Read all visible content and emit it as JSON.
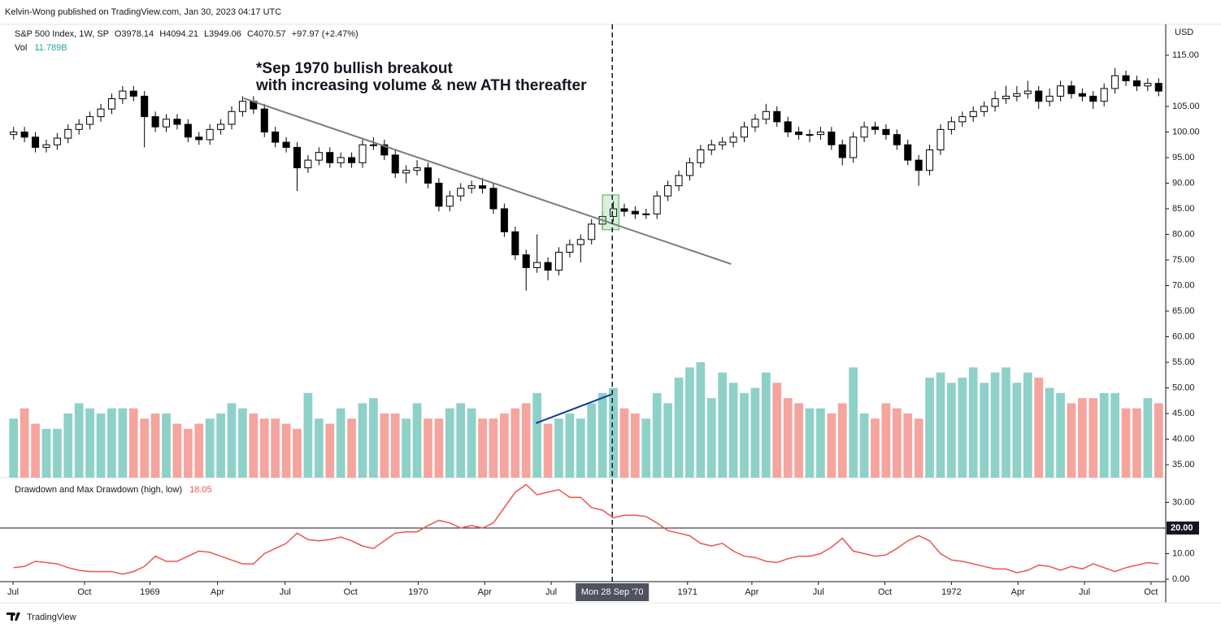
{
  "header": {
    "byline": "Kelvin-Wong published on TradingView.com, Jan 30, 2023 04:17 UTC"
  },
  "footer": {
    "brand": "TradingView"
  },
  "chart_data": [
    {
      "type": "candlestick",
      "title": "S&P 500 Index, 1W, SP",
      "legend_values": [
        "O3978.14",
        "H4094.21",
        "L3949.06",
        "C4070.57",
        "+97.97 (+2.47%)"
      ],
      "currency": "USD",
      "up_color": "#ffffff",
      "down_color": "#000000",
      "wick_color": "#000000",
      "open": [
        99.5,
        100.0,
        99.0,
        97.0,
        97.5,
        98.8,
        100.5,
        101.5,
        103.0,
        104.5,
        106.5,
        108.0,
        107.0,
        103.0,
        101.0,
        102.5,
        101.5,
        99.0,
        98.5,
        100.5,
        101.5,
        104.0,
        106.0,
        104.5,
        100.0,
        98.0,
        97.0,
        93.0,
        94.5,
        96.0,
        94.0,
        95.0,
        94.0,
        97.5,
        97.5,
        95.5,
        92.0,
        92.5,
        93.0,
        90.0,
        85.5,
        87.5,
        89.0,
        89.5,
        89.0,
        85.0,
        80.5,
        76.0,
        73.5,
        74.5,
        73.0,
        76.5,
        78.0,
        79.0,
        82.0,
        83.5,
        85.0,
        84.5,
        84.0,
        84.0,
        87.5,
        89.5,
        91.5,
        94.0,
        96.5,
        97.5,
        98.0,
        99.0,
        101.0,
        102.5,
        104.0,
        102.0,
        100.0,
        99.5,
        99.5,
        100.0,
        97.5,
        95.0,
        99.0,
        101.0,
        100.5,
        99.5,
        97.5,
        94.5,
        92.5,
        96.5,
        100.5,
        102.0,
        103.0,
        104.0,
        105.0,
        106.5,
        107.0,
        107.5,
        108.0,
        106.0,
        107.0,
        109.0,
        107.5,
        107.0,
        106.0,
        108.5,
        111.0,
        110.0,
        109.0,
        109.5
      ],
      "high": [
        101.0,
        101.0,
        100.0,
        98.5,
        99.8,
        101.5,
        102.5,
        104.0,
        105.5,
        107.5,
        109.0,
        109.0,
        108.0,
        104.0,
        103.5,
        103.5,
        102.5,
        100.0,
        101.5,
        102.5,
        105.0,
        107.0,
        107.0,
        105.5,
        101.0,
        99.0,
        98.0,
        95.5,
        97.0,
        97.0,
        96.0,
        96.0,
        98.5,
        99.0,
        98.5,
        96.5,
        93.5,
        94.5,
        94.0,
        91.0,
        88.5,
        90.0,
        90.5,
        91.0,
        90.0,
        86.0,
        81.5,
        77.0,
        80.0,
        75.5,
        77.5,
        79.0,
        80.0,
        83.0,
        84.5,
        86.5,
        86.0,
        85.5,
        85.0,
        88.5,
        90.5,
        92.5,
        95.0,
        97.5,
        98.5,
        99.0,
        100.0,
        102.0,
        103.5,
        105.5,
        105.0,
        103.0,
        101.0,
        100.5,
        101.0,
        101.0,
        98.5,
        100.0,
        102.0,
        102.0,
        101.5,
        100.5,
        98.5,
        95.5,
        97.5,
        101.5,
        103.0,
        104.0,
        105.0,
        106.0,
        108.0,
        109.0,
        109.0,
        110.0,
        109.0,
        108.5,
        110.0,
        110.0,
        108.5,
        108.0,
        109.5,
        112.5,
        112.0,
        111.0,
        110.5,
        110.5
      ],
      "low": [
        98.5,
        98.0,
        96.0,
        96.0,
        96.5,
        97.8,
        99.5,
        100.5,
        102.0,
        103.5,
        105.5,
        106.0,
        97.0,
        100.0,
        100.0,
        100.5,
        98.0,
        97.5,
        97.5,
        99.5,
        100.5,
        103.0,
        103.5,
        99.0,
        97.0,
        96.0,
        88.5,
        92.0,
        93.5,
        93.0,
        93.0,
        93.0,
        93.0,
        96.5,
        94.5,
        91.0,
        90.0,
        91.5,
        89.0,
        84.5,
        84.5,
        86.5,
        88.0,
        88.0,
        84.0,
        79.5,
        75.0,
        69.0,
        72.5,
        71.0,
        72.0,
        75.5,
        74.5,
        78.0,
        81.0,
        82.5,
        83.5,
        83.0,
        83.0,
        83.0,
        86.5,
        88.5,
        90.5,
        93.0,
        95.5,
        96.5,
        97.0,
        98.0,
        100.0,
        101.5,
        101.0,
        99.0,
        98.5,
        98.0,
        98.5,
        96.5,
        93.5,
        94.0,
        98.0,
        99.5,
        98.5,
        96.5,
        93.5,
        89.5,
        91.5,
        95.5,
        99.5,
        101.0,
        102.0,
        103.0,
        104.0,
        105.5,
        106.0,
        106.5,
        104.5,
        105.0,
        106.0,
        106.5,
        106.0,
        104.5,
        105.0,
        107.5,
        109.0,
        108.0,
        108.0,
        107.0
      ],
      "close": [
        100.0,
        99.0,
        97.0,
        97.5,
        98.8,
        100.5,
        101.5,
        103.0,
        104.5,
        106.5,
        108.0,
        107.0,
        103.0,
        101.0,
        102.5,
        101.5,
        99.0,
        98.5,
        100.5,
        101.5,
        104.0,
        106.0,
        104.5,
        100.0,
        98.0,
        97.0,
        93.0,
        94.5,
        96.0,
        94.0,
        95.0,
        94.0,
        97.5,
        97.5,
        95.5,
        92.0,
        92.5,
        93.0,
        90.0,
        85.5,
        87.5,
        89.0,
        89.5,
        89.0,
        85.0,
        80.5,
        76.0,
        73.5,
        74.5,
        73.0,
        76.5,
        78.0,
        79.0,
        82.0,
        83.5,
        85.0,
        84.5,
        84.0,
        84.0,
        87.5,
        89.5,
        91.5,
        94.0,
        96.5,
        97.5,
        98.0,
        99.0,
        101.0,
        102.5,
        104.0,
        102.0,
        100.0,
        99.5,
        99.5,
        100.0,
        97.5,
        95.0,
        99.0,
        101.0,
        100.5,
        99.5,
        97.5,
        94.5,
        92.5,
        96.5,
        100.5,
        102.0,
        103.0,
        104.0,
        105.0,
        106.5,
        107.0,
        107.5,
        108.0,
        106.0,
        107.0,
        109.0,
        107.5,
        107.0,
        106.0,
        108.5,
        111.0,
        110.0,
        109.0,
        109.5,
        108.0
      ],
      "volume": {
        "name": "Vol",
        "last_label": "11.789B",
        "up_color": "#8ed1c9",
        "down_color": "#f5a49e",
        "values": [
          44,
          46,
          43,
          42,
          42,
          45,
          47,
          46,
          45,
          46,
          46,
          46,
          44,
          45,
          45,
          43,
          42,
          43,
          44,
          45,
          47,
          46,
          45,
          44,
          44,
          43,
          42,
          49,
          44,
          43,
          46,
          44,
          47,
          48,
          45,
          45,
          44,
          47,
          44,
          44,
          46,
          47,
          46,
          44,
          44,
          45,
          46,
          47,
          49,
          43,
          44,
          45,
          44,
          47,
          49,
          50,
          46,
          45,
          44,
          49,
          47,
          52,
          54,
          55,
          48,
          53,
          51,
          49,
          50,
          53,
          51,
          48,
          47,
          46,
          46,
          45,
          47,
          54,
          45,
          44,
          47,
          46,
          45,
          44,
          52,
          53,
          51,
          52,
          54,
          51,
          53,
          54,
          51,
          53,
          52,
          50,
          49,
          47,
          48,
          48,
          49,
          49,
          46,
          46,
          48,
          47
        ]
      },
      "xlim": [
        0,
        106
      ],
      "xticks": [
        {
          "value": 0.45,
          "label": "Jul"
        },
        {
          "value": 7.0,
          "label": "Oct"
        },
        {
          "value": 13.0,
          "label": "1969"
        },
        {
          "value": 19.2,
          "label": "Apr"
        },
        {
          "value": 25.4,
          "label": "Jul"
        },
        {
          "value": 31.4,
          "label": "Oct"
        },
        {
          "value": 37.6,
          "label": "1970"
        },
        {
          "value": 43.7,
          "label": "Apr"
        },
        {
          "value": 49.8,
          "label": "Jul"
        },
        {
          "value": 62.3,
          "label": "1971"
        },
        {
          "value": 68.2,
          "label": "Apr"
        },
        {
          "value": 74.3,
          "label": "Jul"
        },
        {
          "value": 80.4,
          "label": "Oct"
        },
        {
          "value": 86.5,
          "label": "1972"
        },
        {
          "value": 92.6,
          "label": "Apr"
        },
        {
          "value": 98.7,
          "label": "Jul"
        },
        {
          "value": 104.8,
          "label": "Oct"
        }
      ],
      "crosshair": {
        "value": 55.4,
        "label": "Mon 28 Sep '70"
      },
      "ylim": [
        32.46,
        121.03
      ],
      "yticks": [
        {
          "value": 115,
          "label": "115.00"
        },
        {
          "value": 105,
          "label": "105.00"
        },
        {
          "value": 100,
          "label": "100.00"
        },
        {
          "value": 95,
          "label": "95.00"
        },
        {
          "value": 90,
          "label": "90.00"
        },
        {
          "value": 85,
          "label": "85.00"
        },
        {
          "value": 80,
          "label": "80.00"
        },
        {
          "value": 75,
          "label": "75.00"
        },
        {
          "value": 70,
          "label": "70.00"
        },
        {
          "value": 65,
          "label": "65.00"
        },
        {
          "value": 60,
          "label": "60.00"
        },
        {
          "value": 55,
          "label": "55.00"
        },
        {
          "value": 50,
          "label": "50.00"
        },
        {
          "value": 45,
          "label": "45.00"
        },
        {
          "value": 40,
          "label": "40.00"
        },
        {
          "value": 35,
          "label": "35.00"
        }
      ],
      "grid": false,
      "annotation": {
        "lines": [
          "*Sep 1970 bullish breakout",
          "with increasing volume & new ATH thereafter"
        ],
        "color": "#787b86"
      },
      "trendline": {
        "x": [
          21.6,
          66.3
        ],
        "y": [
          106.6,
          74.2
        ],
        "color": "#787b86"
      },
      "volume_trendline": {
        "x": [
          48.4,
          55.3
        ],
        "y": [
          43.1,
          48.7
        ],
        "color": "#0d3a94"
      },
      "breakout_box": {
        "x": [
          54.5,
          56.0
        ],
        "y": [
          80.9,
          87.7
        ],
        "color": "#4caf50"
      }
    },
    {
      "type": "line",
      "title": "Drawdown and Max Drawdown (high, low)",
      "last_value": 18.05,
      "color": "#ef5350",
      "values": [
        4.5,
        5,
        7,
        6.5,
        6,
        4.5,
        3.5,
        3,
        3,
        3,
        2,
        3,
        5,
        9,
        7,
        7,
        9,
        11,
        10.5,
        9,
        7.5,
        6,
        6,
        10,
        12,
        14,
        18,
        15.5,
        15,
        15.5,
        16.5,
        15,
        13,
        12,
        15,
        18,
        18.5,
        18.5,
        21,
        23,
        22,
        20,
        21,
        20,
        22,
        28,
        34,
        37,
        33,
        34,
        35,
        32,
        32,
        28,
        27,
        24,
        25,
        25,
        24.5,
        22,
        19,
        18,
        17,
        14,
        13,
        14,
        11,
        9,
        8.5,
        7,
        6.5,
        8,
        9,
        9,
        10,
        12.5,
        16,
        11,
        10,
        9,
        9.5,
        12,
        15,
        17,
        15,
        10,
        7.5,
        7,
        6,
        5,
        4,
        4,
        2.5,
        3.5,
        5.5,
        5,
        3.5,
        5,
        4,
        6,
        4.5,
        3,
        4.5,
        5.5,
        6.5,
        6
      ],
      "ylim": [
        -0.95,
        39.05
      ],
      "yticks": [
        {
          "value": 30,
          "label": "30.00"
        },
        {
          "value": 10,
          "label": "10.00"
        },
        {
          "value": 0,
          "label": "0.00"
        }
      ],
      "hline": {
        "value": 20,
        "label": "20.00"
      }
    }
  ]
}
